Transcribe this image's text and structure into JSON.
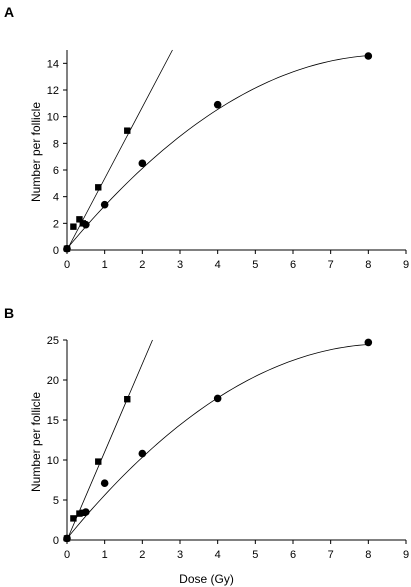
{
  "chart_data": [
    {
      "type": "scatter",
      "panel_label": "A",
      "xlabel": "",
      "ylabel": "Number per follicle",
      "xlim": [
        0,
        9
      ],
      "ylim": [
        0,
        15
      ],
      "x_ticks": [
        0,
        1,
        2,
        3,
        4,
        5,
        6,
        7,
        8,
        9
      ],
      "y_ticks": [
        0,
        2,
        4,
        6,
        8,
        10,
        12,
        14
      ],
      "grid": false,
      "series": [
        {
          "marker": "square",
          "x": [
            0,
            0.17,
            0.33,
            0.42,
            0.83,
            1.6
          ],
          "y": [
            0.1,
            1.75,
            2.3,
            2.0,
            4.7,
            8.95
          ],
          "fit": "linear",
          "fit_x": [
            0,
            2.8
          ],
          "fit_y": [
            0,
            15.0
          ]
        },
        {
          "marker": "circle",
          "x": [
            0,
            0.5,
            1,
            2,
            4,
            8
          ],
          "y": [
            0.1,
            1.9,
            3.4,
            6.5,
            10.9,
            14.55
          ],
          "fit": "quadratic",
          "fit_x": [
            0,
            8
          ],
          "coef": [
            0.1,
            3.41,
            -0.2
          ],
          "coef_order": "a + b*x + c*x^2"
        }
      ]
    },
    {
      "type": "scatter",
      "panel_label": "B",
      "xlabel": "Dose (Gy)",
      "ylabel": "Number per follicle",
      "xlim": [
        0,
        9
      ],
      "ylim": [
        0,
        25
      ],
      "x_ticks": [
        0,
        1,
        2,
        3,
        4,
        5,
        6,
        7,
        8,
        9
      ],
      "y_ticks": [
        0,
        5,
        10,
        15,
        20,
        25
      ],
      "grid": false,
      "series": [
        {
          "marker": "square",
          "x": [
            0,
            0.17,
            0.33,
            0.42,
            0.83,
            1.6
          ],
          "y": [
            0.2,
            2.7,
            3.3,
            3.4,
            9.8,
            17.6
          ],
          "fit": "linear",
          "fit_x": [
            0,
            2.27
          ],
          "fit_y": [
            0,
            25.0
          ]
        },
        {
          "marker": "circle",
          "x": [
            0,
            0.5,
            1,
            2,
            4,
            8
          ],
          "y": [
            0.2,
            3.5,
            7.1,
            10.8,
            17.7,
            24.7
          ],
          "fit": "quadratic",
          "fit_x": [
            0,
            8
          ],
          "coef": [
            0.2,
            5.75,
            -0.34
          ],
          "coef_order": "a + b*x + c*x^2"
        }
      ]
    }
  ]
}
